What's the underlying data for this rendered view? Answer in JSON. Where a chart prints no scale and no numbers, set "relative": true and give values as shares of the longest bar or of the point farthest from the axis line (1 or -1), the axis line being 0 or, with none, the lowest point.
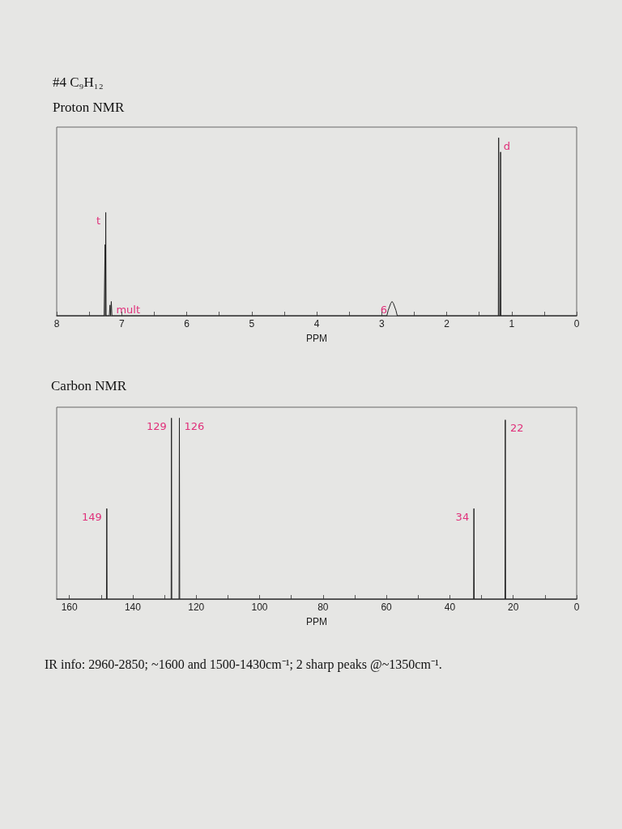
{
  "chart_data": [
    {
      "type": "line",
      "title": "#4 C₉H₁₂",
      "subtitle": "Proton NMR",
      "xlabel": "PPM",
      "relative": true,
      "marker": "none",
      "line_style": "solid",
      "grid": false,
      "xlim": [
        8,
        0
      ],
      "xticks": [
        8,
        {
          "value": 7.5,
          "label": null
        },
        7,
        {
          "value": 6.5,
          "label": null
        },
        6,
        {
          "value": 5.5,
          "label": null
        },
        5,
        {
          "value": 4.5,
          "label": null
        },
        4,
        {
          "value": 3.5,
          "label": null
        },
        3,
        {
          "value": 2.5,
          "label": null
        },
        2,
        {
          "value": 1.5,
          "label": null
        },
        1,
        {
          "value": 0.5,
          "label": null
        },
        0
      ],
      "series": [
        {
          "color": "#222222",
          "x": [
            8,
            7.27,
            7.255,
            7.25,
            7.245,
            7.24,
            7.19,
            7.18,
            7.17,
            7.16,
            7.15,
            7.14,
            2.92,
            2.9,
            2.88,
            2.86,
            2.84,
            2.82,
            2.8,
            2.78,
            2.76,
            1.23,
            1.205,
            1.2,
            1.195,
            1.175,
            1.17,
            1.165,
            1.14,
            0
          ],
          "values": [
            0,
            0,
            0.4,
            0,
            0.58,
            0,
            0,
            0.06,
            0,
            0.08,
            0,
            0,
            0,
            0.03,
            0.05,
            0.07,
            0.08,
            0.07,
            0.05,
            0.03,
            0,
            0,
            0,
            1,
            0,
            0,
            0.92,
            0,
            0,
            0
          ]
        }
      ],
      "annotations": [
        {
          "text": "t",
          "x": 7.25,
          "y": 0.58
        },
        {
          "text": "mult",
          "x": 7.16,
          "y": 0.08
        },
        {
          "text": "6",
          "x": 2.84,
          "y": 0.08
        },
        {
          "text": "d",
          "x": 1.2,
          "y": 1
        }
      ]
    },
    {
      "type": "line",
      "title": "Carbon NMR",
      "xlabel": "PPM",
      "relative": true,
      "marker": "none",
      "line_style": "solid",
      "grid": false,
      "xlim": [
        164,
        0
      ],
      "xticks": [
        160,
        {
          "value": 150,
          "label": null
        },
        140,
        {
          "value": 130,
          "label": null
        },
        120,
        {
          "value": 110,
          "label": null
        },
        100,
        {
          "value": 90,
          "label": null
        },
        80,
        {
          "value": 70,
          "label": null
        },
        60,
        {
          "value": 50,
          "label": null
        },
        40,
        {
          "value": 30,
          "label": null
        },
        20,
        {
          "value": 10,
          "label": null
        },
        0
      ],
      "series": [
        {
          "color": "#222222",
          "x": [
            164,
            148.3,
            148.2,
            148.1,
            127.9,
            127.8,
            127.7,
            125.4,
            125.3,
            125.2,
            32.5,
            32.4,
            32.3,
            22.6,
            22.5,
            22.4,
            0
          ],
          "values": [
            0,
            0,
            0.5,
            0,
            0,
            1,
            0,
            0,
            1,
            0,
            0,
            0.5,
            0,
            0,
            0.99,
            0,
            0
          ]
        }
      ],
      "annotations": [
        {
          "text": "149",
          "x": 148.2,
          "y": 0.5
        },
        {
          "text": "129",
          "x": 127.8,
          "y": 1
        },
        {
          "text": "126",
          "x": 125.3,
          "y": 1
        },
        {
          "text": "34",
          "x": 32.4,
          "y": 0.5
        },
        {
          "text": "22",
          "x": 22.5,
          "y": 0.99
        },
        "IR info: 2960-2850; ~1600 and 1500-1430cm⁻¹; 2 sharp peaks @~1350cm⁻¹."
      ]
    }
  ]
}
